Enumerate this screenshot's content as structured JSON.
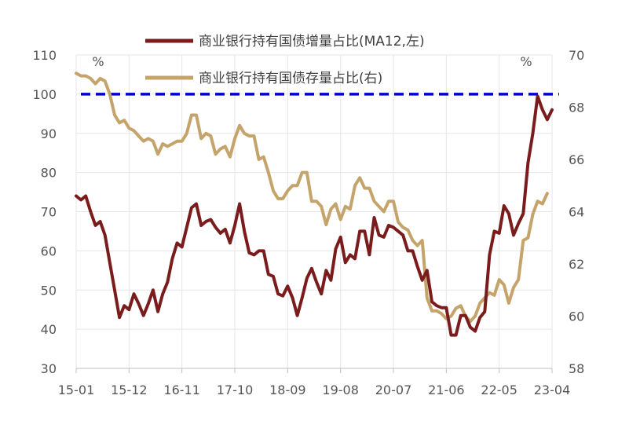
{
  "chart_data": {
    "type": "line",
    "legend_position": "top",
    "unit_left": "%",
    "unit_right": "%",
    "grid": true,
    "x_tick_labels": [
      "15-01",
      "15-12",
      "16-11",
      "17-10",
      "18-09",
      "19-08",
      "20-07",
      "21-06",
      "22-05",
      "23-04"
    ],
    "y_left": {
      "range": [
        30,
        110
      ],
      "ticks": [
        "30",
        "40",
        "50",
        "60",
        "70",
        "80",
        "90",
        "100",
        "110"
      ]
    },
    "y_right": {
      "range": [
        58,
        70
      ],
      "ticks": [
        "58",
        "60",
        "62",
        "64",
        "66",
        "68",
        "70"
      ]
    },
    "reference_line": {
      "axis": "left",
      "value": 100,
      "color": "#0000CC",
      "style": "dashed"
    },
    "series": [
      {
        "name": "商业银行持有国债增量占比(MA12,左)",
        "axis": "left",
        "color": "#7B1C1C",
        "values": [
          74,
          73,
          74,
          70,
          66.5,
          67.5,
          64,
          57,
          50,
          43,
          46,
          45,
          49,
          46.5,
          43.5,
          46.5,
          50,
          44.5,
          49,
          52,
          58,
          62,
          61,
          66,
          71,
          72,
          66.5,
          67.5,
          68,
          66,
          64.5,
          65.5,
          62,
          66.5,
          72,
          65,
          59.5,
          59,
          60,
          60,
          54,
          53.5,
          49,
          48.5,
          51,
          48,
          43.5,
          48,
          53,
          55.5,
          52,
          49,
          55,
          52.5,
          60.5,
          63.5,
          57,
          59,
          58,
          65,
          65,
          59,
          68.5,
          64,
          63.5,
          66.5,
          66,
          65,
          64,
          60,
          60,
          56,
          52.5,
          55,
          47,
          46,
          45.5,
          45.5,
          38.5,
          38.5,
          43.5,
          43.5,
          40.5,
          39.5,
          43,
          44.5,
          59,
          65,
          64.5,
          71.5,
          69.5,
          64,
          67,
          69.5,
          82.5,
          90,
          99.5,
          96,
          93.5,
          96
        ]
      },
      {
        "name": "商业银行持有国债存量占比(右)",
        "axis": "right",
        "color": "#C4A46A",
        "values": [
          69.3,
          69.2,
          69.2,
          69.1,
          68.9,
          69.1,
          69.0,
          68.5,
          67.7,
          67.4,
          67.5,
          67.2,
          67.1,
          66.9,
          66.7,
          66.8,
          66.7,
          66.2,
          66.6,
          66.5,
          66.6,
          66.7,
          66.7,
          67.0,
          67.7,
          67.7,
          66.8,
          67.0,
          66.9,
          66.2,
          66.4,
          66.5,
          66.1,
          66.8,
          67.3,
          67.0,
          66.9,
          66.9,
          66.0,
          66.1,
          65.5,
          64.8,
          64.5,
          64.5,
          64.8,
          65.0,
          65.0,
          65.5,
          65.5,
          64.4,
          64.4,
          64.2,
          63.5,
          64.1,
          64.3,
          63.7,
          64.2,
          64.1,
          65.0,
          65.3,
          64.9,
          64.9,
          64.4,
          64.2,
          64.0,
          64.4,
          64.4,
          63.6,
          63.4,
          63.3,
          62.9,
          62.7,
          62.9,
          60.7,
          60.2,
          60.2,
          60.1,
          59.9,
          60.0,
          60.3,
          60.4,
          60.0,
          59.8,
          60.0,
          60.5,
          60.7,
          60.9,
          60.8,
          61.4,
          61.2,
          60.5,
          61.1,
          61.4,
          62.9,
          63.0,
          63.9,
          64.4,
          64.3,
          64.7
        ]
      }
    ]
  }
}
